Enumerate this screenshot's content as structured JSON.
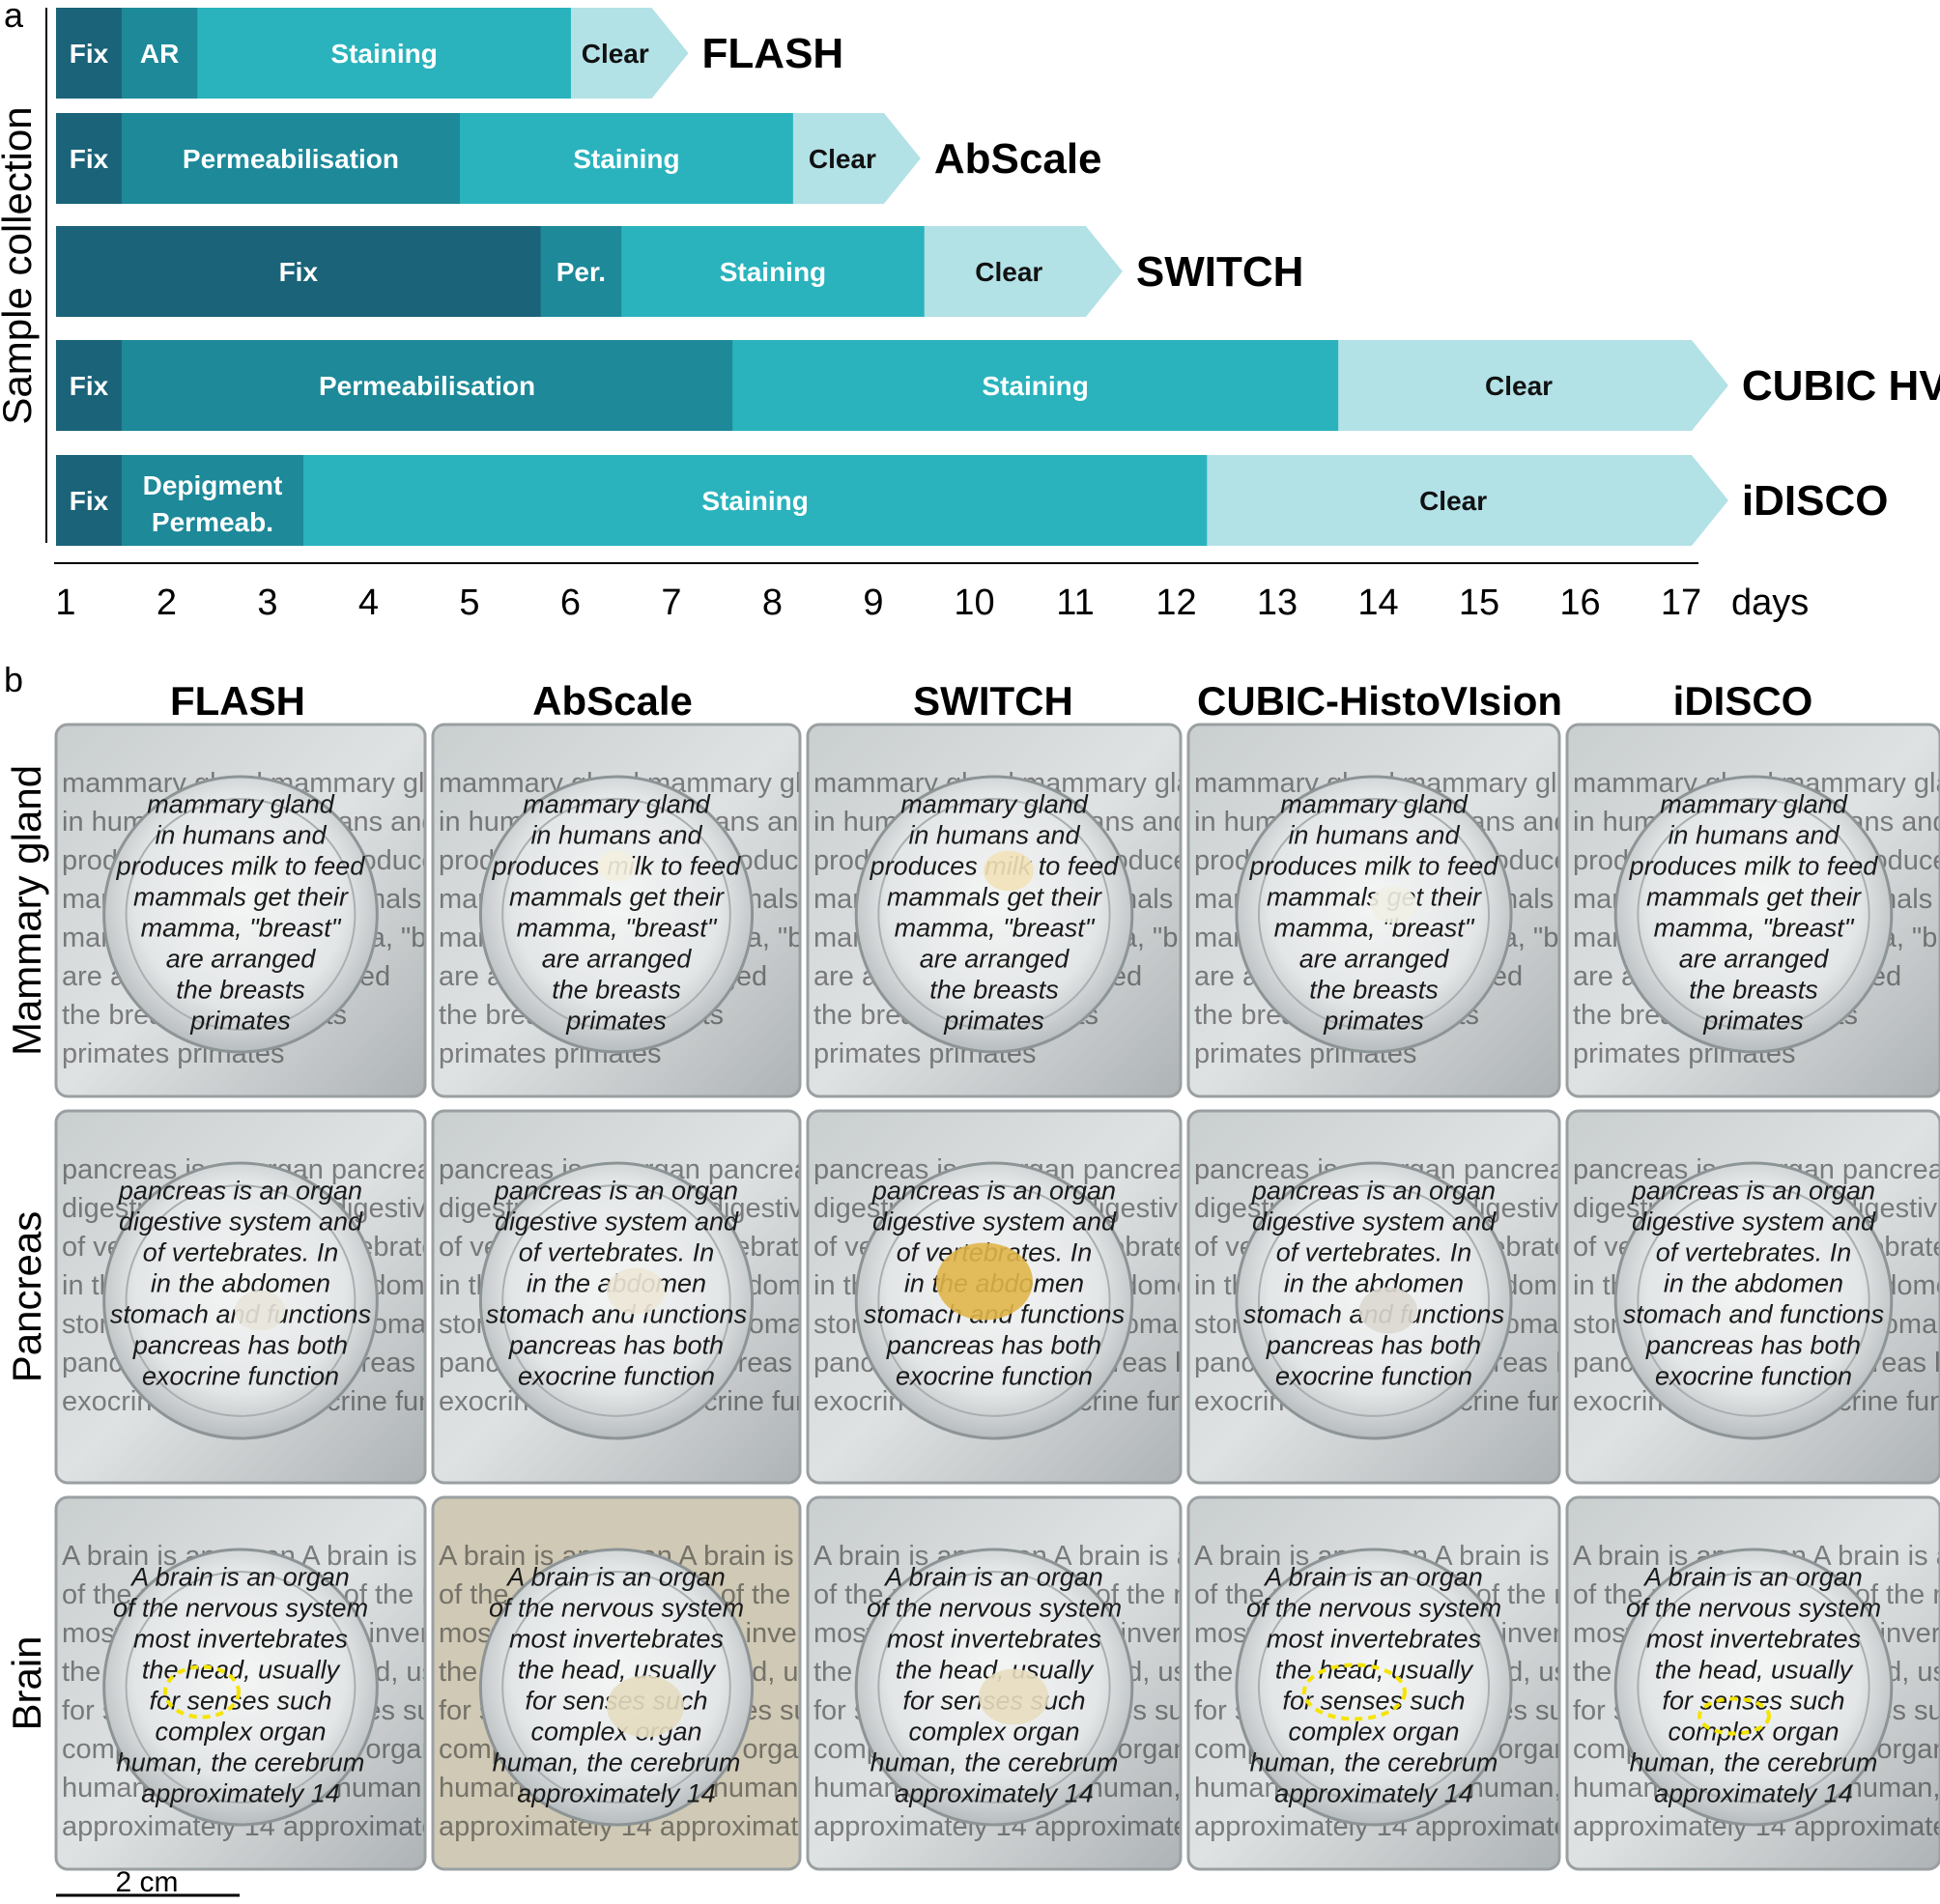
{
  "panel_a_letter": "a",
  "panel_b_letter": "b",
  "side_label": "Sample collection",
  "axis_unit": "days",
  "axis_ticks": [
    "1",
    "2",
    "3",
    "4",
    "5",
    "6",
    "7",
    "8",
    "9",
    "10",
    "11",
    "12",
    "13",
    "14",
    "15",
    "16",
    "17"
  ],
  "colors": {
    "fix": "#1a6379",
    "permeabilisation": "#1d8999",
    "staining": "#2ab3bd",
    "clear": "#b2e1e6"
  },
  "timelines": [
    {
      "method": "FLASH",
      "stages": [
        {
          "label": "Fix",
          "start": 1,
          "end": 1.65,
          "kind": "fix"
        },
        {
          "label": "AR",
          "start": 1.65,
          "end": 2.4,
          "kind": "permeabilisation"
        },
        {
          "label": "Staining",
          "start": 2.4,
          "end": 6.1,
          "kind": "staining"
        },
        {
          "label": "Clear",
          "start": 6.1,
          "end": 6.9,
          "kind": "clear"
        }
      ]
    },
    {
      "method": "AbScale",
      "stages": [
        {
          "label": "Fix",
          "start": 1,
          "end": 1.65,
          "kind": "fix"
        },
        {
          "label": "Permeabilisation",
          "start": 1.65,
          "end": 5.0,
          "kind": "permeabilisation"
        },
        {
          "label": "Staining",
          "start": 5.0,
          "end": 8.3,
          "kind": "staining"
        },
        {
          "label": "Clear",
          "start": 8.3,
          "end": 9.2,
          "kind": "clear"
        }
      ]
    },
    {
      "method": "SWITCH",
      "stages": [
        {
          "label": "Fix",
          "start": 1,
          "end": 5.8,
          "kind": "fix"
        },
        {
          "label": "Per.",
          "start": 5.8,
          "end": 6.6,
          "kind": "permeabilisation"
        },
        {
          "label": "Staining",
          "start": 6.6,
          "end": 9.6,
          "kind": "staining"
        },
        {
          "label": "Clear",
          "start": 9.6,
          "end": 11.2,
          "kind": "clear"
        }
      ]
    },
    {
      "method": "CUBIC HV",
      "stages": [
        {
          "label": "Fix",
          "start": 1,
          "end": 1.65,
          "kind": "fix"
        },
        {
          "label": "Permeabilisation",
          "start": 1.65,
          "end": 7.7,
          "kind": "permeabilisation"
        },
        {
          "label": "Staining",
          "start": 7.7,
          "end": 13.7,
          "kind": "staining"
        },
        {
          "label": "Clear",
          "start": 13.7,
          "end": 17.2,
          "kind": "clear"
        }
      ]
    },
    {
      "method": "iDISCO",
      "stages": [
        {
          "label": "Fix",
          "start": 1,
          "end": 1.65,
          "kind": "fix"
        },
        {
          "label": "Depigment\nPermeab.",
          "start": 1.65,
          "end": 3.45,
          "kind": "permeabilisation"
        },
        {
          "label": "Staining",
          "start": 3.45,
          "end": 12.4,
          "kind": "staining"
        },
        {
          "label": "Clear",
          "start": 12.4,
          "end": 17.2,
          "kind": "clear"
        }
      ]
    }
  ],
  "grid_columns": [
    "FLASH",
    "AbScale",
    "SWITCH",
    "CUBIC-HistoVIsion",
    "iDISCO"
  ],
  "grid_rows": [
    "Mammary gland",
    "Pancreas",
    "Brain"
  ],
  "row_texts": [
    [
      "mammary gland",
      "in humans and",
      "produces milk to feed",
      "mammals get their",
      "mamma, \"breast\"",
      "are arranged",
      "the breasts",
      "primates"
    ],
    [
      "pancreas is an organ",
      "digestive system and",
      "of vertebrates. In",
      "in the abdomen",
      "stomach and functions",
      "pancreas has both",
      "exocrine function"
    ],
    [
      "A brain is an organ",
      "of the nervous system",
      "most invertebrates",
      "the head, usually",
      "for senses such",
      "complex organ",
      "human, the cerebrum",
      "approximately 14"
    ]
  ],
  "scale_bar_label": "2 cm"
}
